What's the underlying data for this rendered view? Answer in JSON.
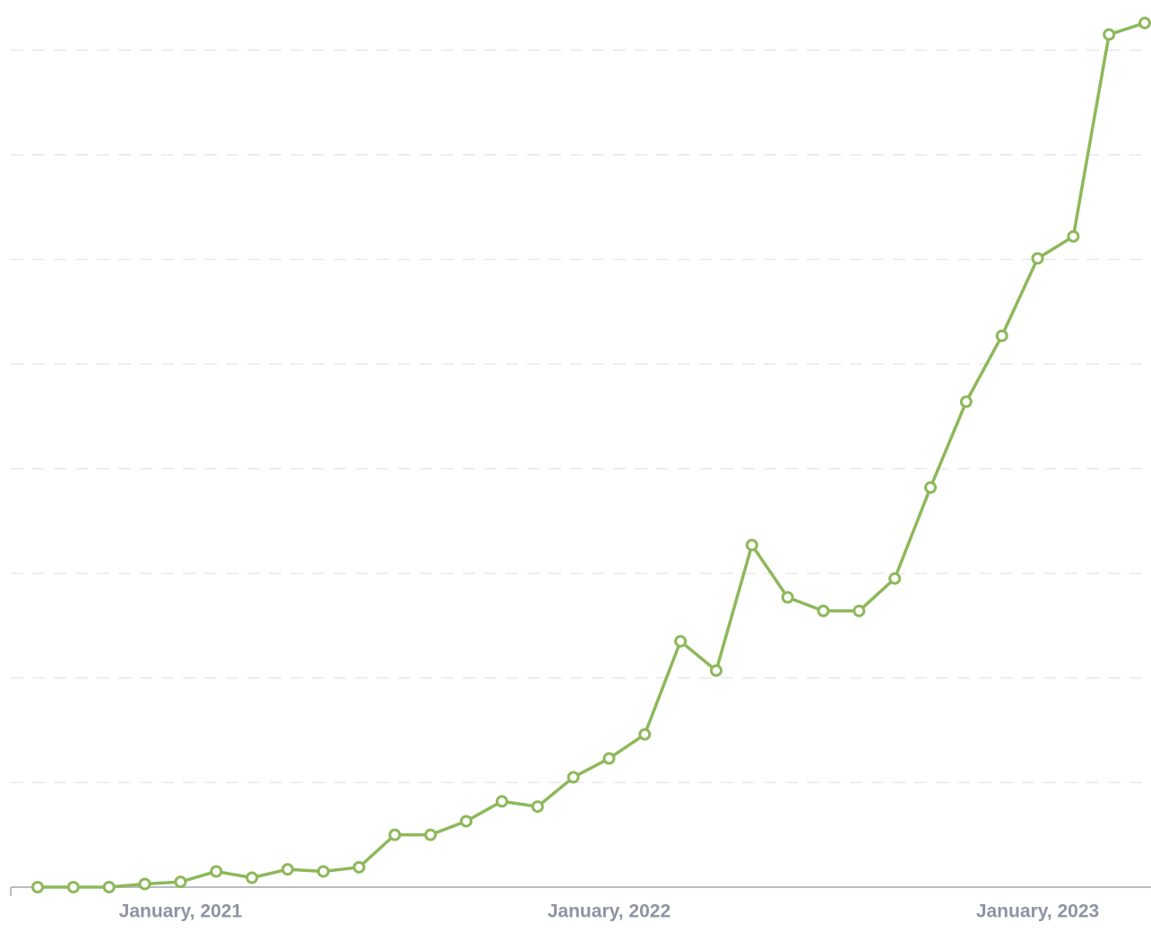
{
  "chart_data": {
    "type": "line",
    "categories": [
      null,
      null,
      null,
      null,
      "January, 2021",
      null,
      null,
      null,
      null,
      null,
      null,
      null,
      null,
      null,
      null,
      null,
      "January, 2022",
      null,
      null,
      null,
      null,
      null,
      null,
      null,
      null,
      null,
      null,
      null,
      "January, 2023",
      null,
      null,
      null
    ],
    "series": [
      {
        "color": "#8db85a",
        "values": [
          0,
          0,
          0,
          0.03,
          0.05,
          0.15,
          0.09,
          0.17,
          0.15,
          0.19,
          0.5,
          0.5,
          0.63,
          0.82,
          0.77,
          1.05,
          1.23,
          1.46,
          2.35,
          2.07,
          3.27,
          2.77,
          2.64,
          2.64,
          2.95,
          3.82,
          4.64,
          5.27,
          6.01,
          6.22,
          8.15,
          8.26
        ]
      }
    ],
    "ylim": [
      0,
      8.48
    ],
    "yticks": [
      1,
      2,
      3,
      4,
      5,
      6,
      7,
      8
    ],
    "grid": true
  }
}
